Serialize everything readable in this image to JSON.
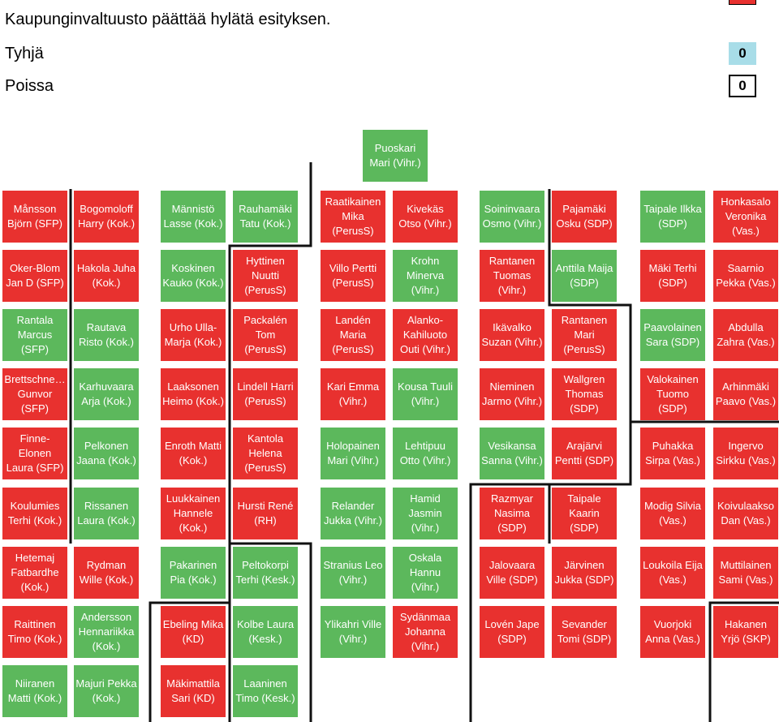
{
  "header": {
    "decision_text": "Kaupunginvaltuusto päättää hylätä esityksen.",
    "blank_label": "Tyhjä",
    "blank_count": "0",
    "absent_label": "Poissa",
    "absent_count": "0"
  },
  "colors": {
    "reject": "#e8312f",
    "accept": "#5cb85c",
    "blank": "#a8dde8",
    "absent": "#ffffff",
    "line": "#111111"
  },
  "seats": [
    {
      "text": "Puoskari Mari (Vihr.)",
      "vote": "accept"
    },
    {
      "text": "Månsson Björn (SFP)",
      "vote": "reject"
    },
    {
      "text": "Bogomoloff Harry (Kok.)",
      "vote": "reject"
    },
    {
      "text": "Männistö Lasse (Kok.)",
      "vote": "accept"
    },
    {
      "text": "Rauhamäki Tatu (Kok.)",
      "vote": "accept"
    },
    {
      "text": "Raatikainen Mika (PerusS)",
      "vote": "reject"
    },
    {
      "text": "Kivekäs Otso (Vihr.)",
      "vote": "reject"
    },
    {
      "text": "Soininvaara Osmo (Vihr.)",
      "vote": "accept"
    },
    {
      "text": "Pajamäki Osku (SDP)",
      "vote": "reject"
    },
    {
      "text": "Taipale Ilkka (SDP)",
      "vote": "accept"
    },
    {
      "text": "Honkasalo Veronika (Vas.)",
      "vote": "reject"
    },
    {
      "text": "Oker-Blom Jan D (SFP)",
      "vote": "reject"
    },
    {
      "text": "Hakola Juha (Kok.)",
      "vote": "reject"
    },
    {
      "text": "Koskinen Kauko (Kok.)",
      "vote": "accept"
    },
    {
      "text": "Hyttinen Nuutti (PerusS)",
      "vote": "reject"
    },
    {
      "text": "Villo Pertti (PerusS)",
      "vote": "reject"
    },
    {
      "text": "Krohn Minerva (Vihr.)",
      "vote": "accept"
    },
    {
      "text": "Rantanen Tuomas (Vihr.)",
      "vote": "reject"
    },
    {
      "text": "Anttila Maija (SDP)",
      "vote": "accept"
    },
    {
      "text": "Mäki Terhi (SDP)",
      "vote": "reject"
    },
    {
      "text": "Saarnio Pekka (Vas.)",
      "vote": "reject"
    },
    {
      "text": "Rantala Marcus (SFP)",
      "vote": "accept"
    },
    {
      "text": "Rautava Risto (Kok.)",
      "vote": "accept"
    },
    {
      "text": "Urho Ulla-Marja (Kok.)",
      "vote": "reject"
    },
    {
      "text": "Packalén Tom (PerusS)",
      "vote": "reject"
    },
    {
      "text": "Landén Maria (PerusS)",
      "vote": "reject"
    },
    {
      "text": "Alanko-Kahiluoto Outi (Vihr.)",
      "vote": "reject"
    },
    {
      "text": "Ikävalko Suzan (Vihr.)",
      "vote": "reject"
    },
    {
      "text": "Rantanen Mari (PerusS)",
      "vote": "reject"
    },
    {
      "text": "Paavolainen Sara (SDP)",
      "vote": "accept"
    },
    {
      "text": "Abdulla Zahra (Vas.)",
      "vote": "reject"
    },
    {
      "text": "Brettschne… Gunvor (SFP)",
      "vote": "reject"
    },
    {
      "text": "Karhuvaara Arja (Kok.)",
      "vote": "accept"
    },
    {
      "text": "Laaksonen Heimo (Kok.)",
      "vote": "reject"
    },
    {
      "text": "Lindell Harri (PerusS)",
      "vote": "reject"
    },
    {
      "text": "Kari Emma (Vihr.)",
      "vote": "reject"
    },
    {
      "text": "Kousa Tuuli (Vihr.)",
      "vote": "accept"
    },
    {
      "text": "Nieminen Jarmo (Vihr.)",
      "vote": "reject"
    },
    {
      "text": "Wallgren Thomas (SDP)",
      "vote": "reject"
    },
    {
      "text": "Valokainen Tuomo (SDP)",
      "vote": "reject"
    },
    {
      "text": "Arhinmäki Paavo (Vas.)",
      "vote": "reject"
    },
    {
      "text": "Finne-Elonen Laura (SFP)",
      "vote": "reject"
    },
    {
      "text": "Pelkonen Jaana (Kok.)",
      "vote": "accept"
    },
    {
      "text": "Enroth Matti (Kok.)",
      "vote": "reject"
    },
    {
      "text": "Kantola Helena (PerusS)",
      "vote": "reject"
    },
    {
      "text": "Holopainen Mari (Vihr.)",
      "vote": "accept"
    },
    {
      "text": "Lehtipuu Otto (Vihr.)",
      "vote": "accept"
    },
    {
      "text": "Vesikansa Sanna (Vihr.)",
      "vote": "accept"
    },
    {
      "text": "Arajärvi Pentti (SDP)",
      "vote": "reject"
    },
    {
      "text": "Puhakka Sirpa (Vas.)",
      "vote": "reject"
    },
    {
      "text": "Ingervo Sirkku (Vas.)",
      "vote": "reject"
    },
    {
      "text": "Koulumies Terhi (Kok.)",
      "vote": "reject"
    },
    {
      "text": "Rissanen Laura (Kok.)",
      "vote": "accept"
    },
    {
      "text": "Luukkainen Hannele (Kok.)",
      "vote": "reject"
    },
    {
      "text": "Hursti René (RH)",
      "vote": "reject"
    },
    {
      "text": "Relander Jukka (Vihr.)",
      "vote": "accept"
    },
    {
      "text": "Hamid Jasmin (Vihr.)",
      "vote": "accept"
    },
    {
      "text": "Razmyar Nasima (SDP)",
      "vote": "reject"
    },
    {
      "text": "Taipale Kaarin (SDP)",
      "vote": "reject"
    },
    {
      "text": "Modig Silvia (Vas.)",
      "vote": "reject"
    },
    {
      "text": "Koivulaakso Dan (Vas.)",
      "vote": "reject"
    },
    {
      "text": "Hetemaj Fatbardhe (Kok.)",
      "vote": "reject"
    },
    {
      "text": "Rydman Wille (Kok.)",
      "vote": "reject"
    },
    {
      "text": "Pakarinen Pia (Kok.)",
      "vote": "accept"
    },
    {
      "text": "Peltokorpi Terhi (Kesk.)",
      "vote": "accept"
    },
    {
      "text": "Stranius Leo (Vihr.)",
      "vote": "accept"
    },
    {
      "text": "Oskala Hannu (Vihr.)",
      "vote": "accept"
    },
    {
      "text": "Jalovaara Ville (SDP)",
      "vote": "reject"
    },
    {
      "text": "Järvinen Jukka (SDP)",
      "vote": "reject"
    },
    {
      "text": "Loukoila Eija (Vas.)",
      "vote": "reject"
    },
    {
      "text": "Muttilainen Sami (Vas.)",
      "vote": "reject"
    },
    {
      "text": "Raittinen Timo (Kok.)",
      "vote": "reject"
    },
    {
      "text": "Andersson Hennariikka (Kok.)",
      "vote": "accept"
    },
    {
      "text": "Ebeling Mika (KD)",
      "vote": "reject"
    },
    {
      "text": "Kolbe Laura (Kesk.)",
      "vote": "accept"
    },
    {
      "text": "Ylikahri Ville (Vihr.)",
      "vote": "accept"
    },
    {
      "text": "Sydänmaa Johanna (Vihr.)",
      "vote": "reject"
    },
    {
      "text": "Lovén Jape (SDP)",
      "vote": "reject"
    },
    {
      "text": "Sevander Tomi (SDP)",
      "vote": "reject"
    },
    {
      "text": "Vuorjoki Anna (Vas.)",
      "vote": "reject"
    },
    {
      "text": "Hakanen Yrjö (SKP)",
      "vote": "reject"
    },
    {
      "text": "Niiranen Matti (Kok.)",
      "vote": "accept"
    },
    {
      "text": "Majuri Pekka (Kok.)",
      "vote": "accept"
    },
    {
      "text": "Mäkimattila Sari (KD)",
      "vote": "reject"
    },
    {
      "text": "Laaninen Timo (Kesk.)",
      "vote": "accept"
    }
  ]
}
